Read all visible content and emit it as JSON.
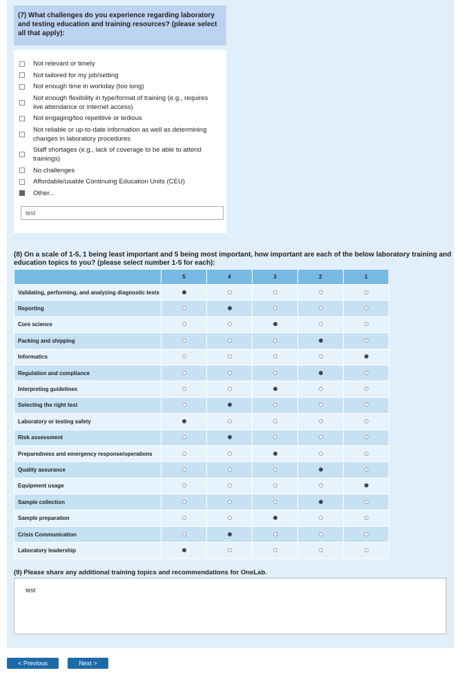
{
  "q7": {
    "title": "(7) What challenges do you experience regarding laboratory and testing education and training resources? (please select all that apply):",
    "options": [
      "Not relevant or timely",
      "Not tailored for my job/setting",
      "Not enough time in workday (too long)",
      "Not enough flexibility in type/format of training (e.g., requires live attendance or internet access)",
      "Not engaging/too repetitive or tedious",
      "Not reliable or up-to-date information as well as determining changes in laboratory procedures",
      "Staff shortages (e.g., lack of coverage to be able to attend trainings)",
      "No challenges",
      "Affordable/usable Continuing Education Units (CEU)",
      "Other..."
    ],
    "checked": [
      9
    ],
    "other_text": "test"
  },
  "q8": {
    "title": "(8) On a scale of 1-5, 1 being least important and 5 being most important, how important are each of the below laboratory training and education topics to you? (please select number 1-5 for each):",
    "columns": [
      "5",
      "4",
      "3",
      "2",
      "1"
    ],
    "rows": [
      {
        "label": "Validating, performing, and analyzing diagnostic tests",
        "selected": 0
      },
      {
        "label": "Reporting",
        "selected": 1
      },
      {
        "label": "Core science",
        "selected": 2
      },
      {
        "label": "Packing and shipping",
        "selected": 3
      },
      {
        "label": "Informatics",
        "selected": 4
      },
      {
        "label": "Regulation and compliance",
        "selected": 3
      },
      {
        "label": "Interpreting guidelines",
        "selected": 2
      },
      {
        "label": "Selecting the right test",
        "selected": 1
      },
      {
        "label": "Laboratory or testing safety",
        "selected": 0
      },
      {
        "label": "Risk assessment",
        "selected": 1
      },
      {
        "label": "Preparedness and emergency response/operations",
        "selected": 2
      },
      {
        "label": "Quality assurance",
        "selected": 3
      },
      {
        "label": "Equipment usage",
        "selected": 4
      },
      {
        "label": "Sample collection",
        "selected": 3
      },
      {
        "label": "Sample preparation",
        "selected": 2
      },
      {
        "label": "Crisis Communication",
        "selected": 1
      },
      {
        "label": "Laboratory leadership",
        "selected": 0
      }
    ]
  },
  "q9": {
    "title": "(9) Please share any additional training topics and recommendations for OneLab.",
    "answer": "test"
  },
  "buttons": {
    "previous": "< Previous",
    "next": "Next >"
  }
}
